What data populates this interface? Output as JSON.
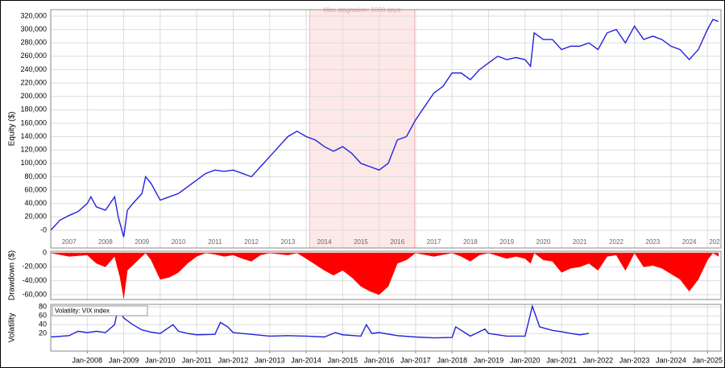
{
  "chart_data": [
    {
      "type": "line",
      "ylabel": "Equity ($)",
      "color": "#2222dd",
      "stagnation": {
        "label": "Max stagnation: 1068 days",
        "start": 2014.1,
        "end": 2016.97
      },
      "year_labels": [
        "2007",
        "2008",
        "2009",
        "2010",
        "2011",
        "2012",
        "2013",
        "2014",
        "2015",
        "2016",
        "2017",
        "2018",
        "2019",
        "2020",
        "2021",
        "2022",
        "2023",
        "2024",
        "202"
      ],
      "x": [
        2007.0,
        2007.25,
        2007.5,
        2007.75,
        2008.0,
        2008.1,
        2008.25,
        2008.5,
        2008.75,
        2008.85,
        2009.0,
        2009.1,
        2009.25,
        2009.5,
        2009.6,
        2009.75,
        2010.0,
        2010.25,
        2010.5,
        2010.75,
        2011.0,
        2011.25,
        2011.5,
        2011.75,
        2012.0,
        2012.25,
        2012.5,
        2012.75,
        2013.0,
        2013.25,
        2013.5,
        2013.75,
        2014.0,
        2014.25,
        2014.5,
        2014.75,
        2015.0,
        2015.25,
        2015.5,
        2015.75,
        2016.0,
        2016.25,
        2016.5,
        2016.75,
        2017.0,
        2017.25,
        2017.5,
        2017.75,
        2018.0,
        2018.25,
        2018.5,
        2018.75,
        2019.0,
        2019.25,
        2019.5,
        2019.75,
        2020.0,
        2020.15,
        2020.25,
        2020.5,
        2020.75,
        2021.0,
        2021.25,
        2021.5,
        2021.75,
        2022.0,
        2022.25,
        2022.5,
        2022.75,
        2023.0,
        2023.25,
        2023.5,
        2023.75,
        2024.0,
        2024.25,
        2024.5,
        2024.75,
        2025.0,
        2025.15,
        2025.3
      ],
      "values": [
        0,
        15000,
        22000,
        28000,
        40000,
        50000,
        35000,
        30000,
        50000,
        20000,
        -10000,
        30000,
        40000,
        55000,
        80000,
        70000,
        45000,
        50000,
        55000,
        65000,
        75000,
        85000,
        90000,
        88000,
        90000,
        85000,
        80000,
        95000,
        110000,
        125000,
        140000,
        148000,
        140000,
        135000,
        125000,
        118000,
        125000,
        115000,
        100000,
        95000,
        90000,
        100000,
        135000,
        140000,
        165000,
        185000,
        205000,
        215000,
        235000,
        235000,
        225000,
        240000,
        250000,
        260000,
        255000,
        258000,
        255000,
        245000,
        295000,
        285000,
        285000,
        270000,
        275000,
        275000,
        280000,
        270000,
        295000,
        300000,
        280000,
        305000,
        285000,
        290000,
        285000,
        275000,
        270000,
        255000,
        270000,
        300000,
        315000,
        312000
      ],
      "xlim": [
        2007.0,
        2025.37
      ],
      "ylim": [
        -26500,
        329600
      ],
      "yticks": [
        {
          "value": 0,
          "label": "-0"
        },
        {
          "value": 20000,
          "label": "20,000"
        },
        {
          "value": 40000,
          "label": "40,000"
        },
        {
          "value": 60000,
          "label": "60,000"
        },
        {
          "value": 80000,
          "label": "80,000"
        },
        {
          "value": 100000,
          "label": "100,000"
        },
        {
          "value": 120000,
          "label": "120,000"
        },
        {
          "value": 140000,
          "label": "140,000"
        },
        {
          "value": 160000,
          "label": "160,000"
        },
        {
          "value": 180000,
          "label": "180,000"
        },
        {
          "value": 200000,
          "label": "200,000"
        },
        {
          "value": 220000,
          "label": "220,000"
        },
        {
          "value": 240000,
          "label": "240,000"
        },
        {
          "value": 260000,
          "label": "260,000"
        },
        {
          "value": 280000,
          "label": "280,000"
        },
        {
          "value": 300000,
          "label": "300,000"
        },
        {
          "value": 320000,
          "label": "320,000"
        }
      ],
      "grid": true
    },
    {
      "type": "area",
      "ylabel": "Drawdown ($)",
      "color": "#ff0000",
      "x": [
        2007.0,
        2007.5,
        2008.0,
        2008.25,
        2008.5,
        2008.75,
        2008.9,
        2009.0,
        2009.1,
        2009.3,
        2009.6,
        2009.75,
        2010.0,
        2010.25,
        2010.5,
        2010.75,
        2011.0,
        2011.25,
        2011.5,
        2011.75,
        2012.0,
        2012.25,
        2012.5,
        2012.75,
        2013.0,
        2013.5,
        2013.75,
        2014.0,
        2014.5,
        2014.75,
        2015.0,
        2015.25,
        2015.5,
        2015.75,
        2016.0,
        2016.25,
        2016.5,
        2016.75,
        2017.0,
        2017.5,
        2018.0,
        2018.25,
        2018.5,
        2018.75,
        2019.0,
        2019.5,
        2019.75,
        2020.0,
        2020.15,
        2020.25,
        2020.5,
        2020.75,
        2021.0,
        2021.25,
        2021.5,
        2021.75,
        2022.0,
        2022.25,
        2022.5,
        2022.75,
        2023.0,
        2023.25,
        2023.5,
        2023.75,
        2024.0,
        2024.25,
        2024.5,
        2024.75,
        2025.0,
        2025.15,
        2025.3
      ],
      "values": [
        0,
        -5000,
        -3000,
        -15000,
        -20000,
        -5000,
        -35000,
        -65000,
        -25000,
        -15000,
        0,
        -10000,
        -38000,
        -35000,
        -28000,
        -15000,
        -5000,
        0,
        -2000,
        -5000,
        -3000,
        -8000,
        -12000,
        -3000,
        0,
        -3000,
        0,
        -8000,
        -25000,
        -32000,
        -25000,
        -35000,
        -48000,
        -55000,
        -60000,
        -48000,
        -15000,
        -10000,
        0,
        -5000,
        0,
        -5000,
        -12000,
        -3000,
        0,
        -8000,
        -5000,
        -8000,
        -15000,
        0,
        -10000,
        -12000,
        -28000,
        -22000,
        -20000,
        -15000,
        -25000,
        -5000,
        -3000,
        -25000,
        0,
        -20000,
        -18000,
        -22000,
        -30000,
        -38000,
        -55000,
        -38000,
        -10000,
        0,
        -5000
      ],
      "xlim": [
        2007.0,
        2025.37
      ],
      "ylim": [
        -67000,
        2400
      ],
      "yticks": [
        {
          "value": -60000,
          "label": "-60,000"
        },
        {
          "value": -40000,
          "label": "-40,000"
        },
        {
          "value": -20000,
          "label": "-20,000"
        },
        0
      ],
      "grid": true
    },
    {
      "type": "line",
      "ylabel": "Volatility",
      "series": [
        {
          "name": "Volatility: VIX index",
          "color": "#2222dd",
          "values": [
            12,
            15,
            25,
            22,
            25,
            22,
            40,
            80,
            55,
            40,
            28,
            23,
            20,
            40,
            25,
            20,
            17,
            18,
            45,
            35,
            22,
            18,
            14,
            15,
            14,
            12,
            22,
            17,
            14,
            40,
            20,
            22,
            15,
            12,
            10,
            11,
            35,
            14,
            30,
            20,
            14,
            14,
            82,
            35,
            27,
            24,
            20,
            17,
            20
          ]
        }
      ],
      "x": [
        2007.0,
        2007.5,
        2007.75,
        2008.0,
        2008.25,
        2008.5,
        2008.75,
        2008.85,
        2009.0,
        2009.25,
        2009.5,
        2009.75,
        2010.0,
        2010.35,
        2010.5,
        2010.75,
        2011.0,
        2011.5,
        2011.65,
        2011.85,
        2012.0,
        2012.5,
        2013.0,
        2013.5,
        2014.0,
        2014.5,
        2014.8,
        2015.0,
        2015.5,
        2015.65,
        2015.8,
        2016.0,
        2016.5,
        2017.0,
        2017.5,
        2018.0,
        2018.1,
        2018.5,
        2018.9,
        2019.0,
        2019.5,
        2020.0,
        2020.2,
        2020.4,
        2020.75,
        2021.0,
        2021.25,
        2021.5,
        2021.75
      ],
      "xlim": [
        2007.0,
        2025.37
      ],
      "ylim": [
        -20,
        86
      ],
      "yticks": [
        20,
        40,
        60,
        80
      ],
      "xticks": [
        {
          "value": 2008,
          "label": "Jan-2008"
        },
        {
          "value": 2009,
          "label": "Jan-2009"
        },
        {
          "value": 2010,
          "label": "Jan-2010"
        },
        {
          "value": 2011,
          "label": "Jan-2011"
        },
        {
          "value": 2012,
          "label": "Jan-2012"
        },
        {
          "value": 2013,
          "label": "Jan-2013"
        },
        {
          "value": 2014,
          "label": "Jan-2014"
        },
        {
          "value": 2015,
          "label": "Jan-2015"
        },
        {
          "value": 2016,
          "label": "Jan-2016"
        },
        {
          "value": 2017,
          "label": "Jan-2017"
        },
        {
          "value": 2018,
          "label": "Jan-2018"
        },
        {
          "value": 2019,
          "label": "Jan-2019"
        },
        {
          "value": 2020,
          "label": "Jan-2020"
        },
        {
          "value": 2021,
          "label": "Jan-2021"
        },
        {
          "value": 2022,
          "label": "Jan-2022"
        },
        {
          "value": 2023,
          "label": "Jan-2023"
        },
        {
          "value": 2024,
          "label": "Jan-2024"
        },
        {
          "value": 2025,
          "label": "Jan-2025"
        }
      ],
      "grid": true
    }
  ]
}
